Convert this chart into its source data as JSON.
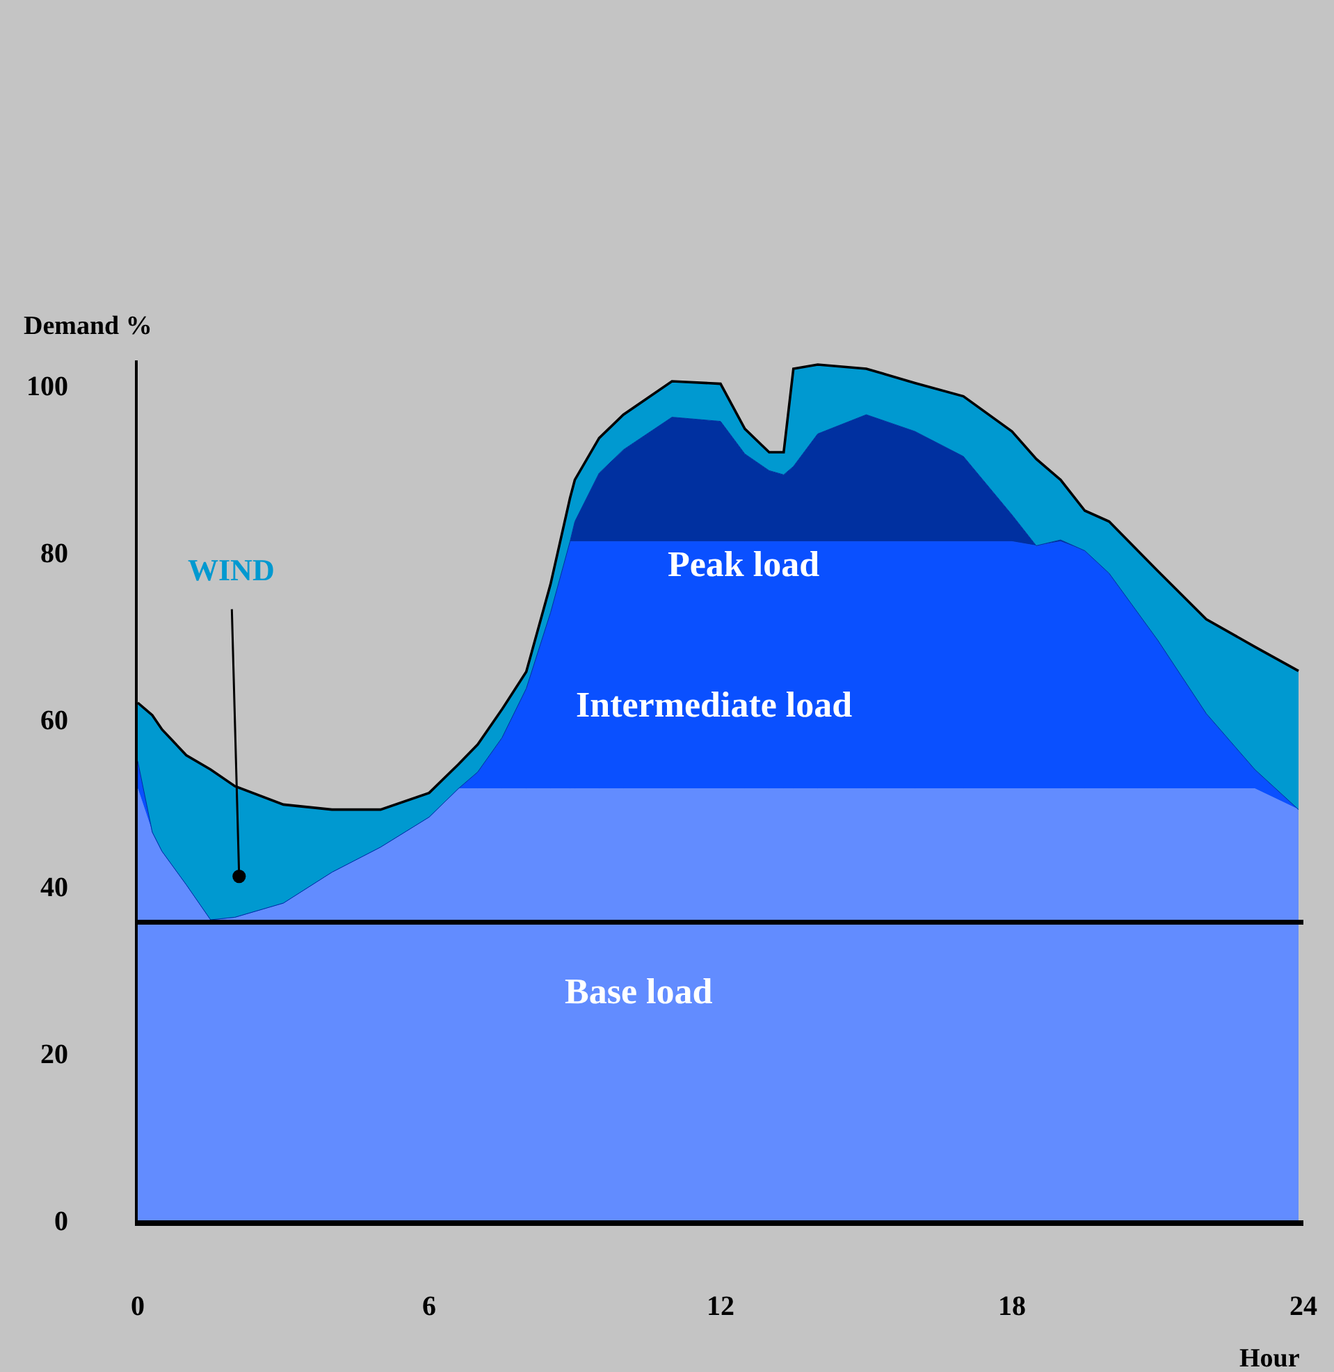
{
  "chart_data": {
    "type": "area",
    "stacked": true,
    "xlabel": "Hour",
    "ylabel": "Demand %",
    "x": [
      0,
      0.3,
      0.5,
      1,
      1.5,
      2,
      3,
      4,
      5,
      6,
      6.6,
      7,
      7.5,
      8,
      8.5,
      8.9,
      9,
      9.5,
      10,
      11,
      12,
      12.5,
      13,
      13.3,
      13.5,
      14,
      15,
      16,
      17,
      18,
      18.5,
      19,
      19.5,
      20,
      21,
      22,
      23,
      23.9
    ],
    "series": [
      {
        "color": "#628cff",
        "values": [
          51.7,
          46.5,
          44.2,
          40.2,
          36.0,
          36.3,
          38.0,
          41.7,
          44.7,
          48.3,
          51.7,
          51.7,
          51.7,
          51.7,
          51.7,
          51.7,
          51.7,
          51.7,
          51.7,
          51.7,
          51.7,
          51.7,
          51.7,
          51.7,
          51.7,
          51.7,
          51.7,
          51.7,
          51.7,
          51.7,
          51.7,
          51.7,
          51.7,
          51.7,
          51.7,
          51.7,
          51.7,
          49.2
        ]
      },
      {
        "color": "#0a50ff",
        "values": [
          3.3,
          0,
          0,
          0,
          0,
          0,
          0,
          0,
          0,
          0,
          0,
          2.0,
          6.1,
          12.0,
          21.1,
          29.6,
          29.6,
          29.6,
          29.6,
          29.6,
          29.6,
          29.6,
          29.6,
          29.6,
          29.6,
          29.6,
          29.6,
          29.6,
          29.6,
          29.6,
          29.1,
          29.6,
          28.5,
          25.8,
          17.8,
          9.0,
          2.3,
          0
        ]
      },
      {
        "color": "#0030a0",
        "values": [
          0,
          0,
          0,
          0,
          0,
          0,
          0,
          0,
          0,
          0,
          0,
          0,
          0,
          0,
          0,
          0,
          2.4,
          8.2,
          11.0,
          14.9,
          14.4,
          10.5,
          8.5,
          8.0,
          9.0,
          12.9,
          15.2,
          13.2,
          10.2,
          3.2,
          0,
          0.2,
          0,
          0,
          0,
          0,
          0,
          0
        ]
      },
      {
        "color": "#0099d0",
        "values": [
          7.0,
          14.0,
          14.6,
          15.5,
          18.0,
          15.7,
          11.8,
          7.5,
          4.5,
          2.9,
          2.9,
          3.3,
          3.4,
          2.0,
          3.4,
          5.2,
          5.0,
          4.2,
          4.2,
          4.3,
          4.5,
          3.0,
          2.2,
          2.7,
          11.7,
          8.3,
          5.5,
          5.8,
          7.2,
          10.0,
          10.4,
          7.2,
          4.8,
          6.2,
          8.3,
          11.3,
          14.7,
          16.6
        ]
      }
    ],
    "xlim": [
      0,
      24
    ],
    "xticks": [
      0,
      6,
      12,
      18,
      24
    ],
    "ylim": [
      0,
      103
    ],
    "yticks": [
      0,
      20,
      40,
      60,
      80,
      100
    ],
    "ref_lines": [
      {
        "axis": "y",
        "value": 35.7,
        "color": "#000000"
      }
    ],
    "annotations": [
      "WIND",
      "Peak load",
      "Intermediate load",
      "Base load"
    ],
    "grid": false
  }
}
